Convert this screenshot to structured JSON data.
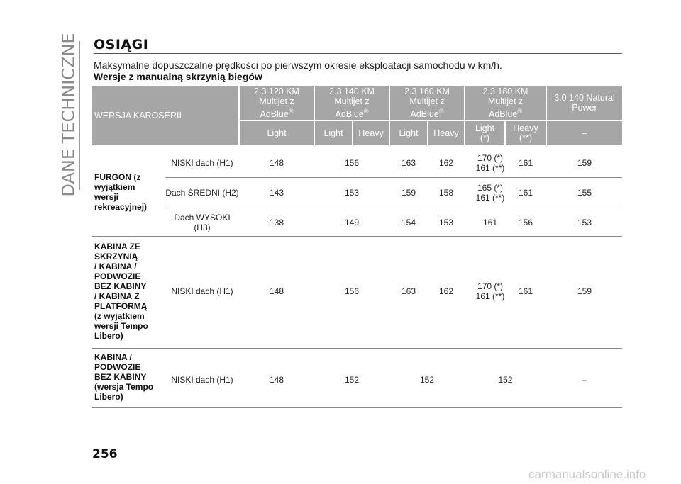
{
  "section_label": "DANE TECHNICZNE",
  "title": "OSIĄGI",
  "intro": "Maksymalne dopuszczalne prędkości po pierwszym okresie eksploatacji samochodu w km/h.",
  "subtitle": "Wersje z manualną skrzynią biegów",
  "table": {
    "header_first": "WERSJA KAROSERII",
    "engines": [
      {
        "line1": "2.3 120 KM",
        "line2": "Multijet z",
        "line3": "AdBlue",
        "reg": "®"
      },
      {
        "line1": "2.3 140 KM",
        "line2": "Multijet z",
        "line3": "AdBlue",
        "reg": "®"
      },
      {
        "line1": "2.3 160 KM",
        "line2": "Multijet z",
        "line3": "AdBlue",
        "reg": "®"
      },
      {
        "line1": "2.3 180 KM",
        "line2": "Multijet z",
        "line3": "AdBlue",
        "reg": "®"
      },
      {
        "line1": "3.0 140 Natural",
        "line2": "Power",
        "line3": "",
        "reg": ""
      }
    ],
    "subheaders": [
      {
        "l1": "Light",
        "l2": ""
      },
      {
        "l1": "Light",
        "l2": ""
      },
      {
        "l1": "Heavy",
        "l2": ""
      },
      {
        "l1": "Light",
        "l2": ""
      },
      {
        "l1": "Heavy",
        "l2": ""
      },
      {
        "l1": "Light",
        "l2": "(*)"
      },
      {
        "l1": "Heavy",
        "l2": "(**)"
      },
      {
        "l1": "–",
        "l2": ""
      }
    ],
    "groups": [
      {
        "label": [
          "FURGON (z",
          "wyjątkiem",
          "wersji",
          "rekreacyjnej)"
        ],
        "rows": [
          {
            "roof": [
              "NISKI dach (H1)"
            ],
            "v": [
              "148",
              "156",
              "163",
              "162",
              "170 (*)|161 (**)",
              "161",
              "159"
            ]
          },
          {
            "roof": [
              "Dach ŚREDNI (H2)"
            ],
            "v": [
              "143",
              "153",
              "159",
              "158",
              "165 (*)|161 (**)",
              "161",
              "155"
            ]
          },
          {
            "roof": [
              "Dach WYSOKI",
              "(H3)"
            ],
            "v": [
              "138",
              "149",
              "154",
              "153",
              "161",
              "156",
              "153"
            ]
          }
        ]
      },
      {
        "label": [
          "KABINA ZE",
          "SKRZYNIĄ",
          "/ KABINA /",
          "PODWOZIE",
          "BEZ KABINY",
          "/ KABINA Z",
          "PLATFORMĄ",
          "(z wyjątkiem",
          "wersji Tempo",
          "Libero)"
        ],
        "rows": [
          {
            "roof": [
              "NISKI dach (H1)"
            ],
            "v": [
              "148",
              "156",
              "163",
              "162",
              "170 (*)|161 (**)",
              "161",
              "159"
            ]
          }
        ]
      },
      {
        "label": [
          "KABINA /",
          "PODWOZIE",
          "BEZ KABINY",
          "(wersja Tempo",
          "Libero)"
        ],
        "rows": [
          {
            "roof": [
              "NISKI dach (H1)"
            ],
            "v": [
              "148",
              "152",
              "152",
              "152",
              "–"
            ]
          }
        ]
      }
    ]
  },
  "page_number": "256",
  "watermark": "carmanualsonline.info"
}
